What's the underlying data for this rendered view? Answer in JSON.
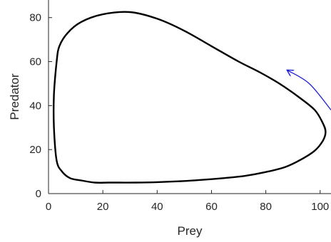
{
  "chart_data": {
    "type": "line",
    "xlabel": "Prey",
    "ylabel": "Predator",
    "xlim": [
      0,
      104
    ],
    "ylim": [
      0,
      88
    ],
    "xticks": [
      0,
      20,
      40,
      60,
      80,
      100
    ],
    "yticks": [
      0,
      20,
      40,
      60,
      80
    ],
    "grid": false,
    "series": [
      {
        "line_color": "#000000",
        "x": [
          3,
          2,
          2,
          3,
          5,
          8,
          12,
          17,
          22,
          26,
          32,
          40,
          48,
          56,
          64,
          72,
          80,
          87,
          93,
          98,
          101,
          102,
          101,
          98,
          92,
          85,
          78,
          70,
          60,
          50,
          40,
          30,
          20,
          12,
          7,
          4,
          3
        ],
        "y": [
          60,
          45,
          30,
          15,
          10,
          7,
          6,
          5,
          5,
          5,
          5,
          5.2,
          5.6,
          6.2,
          7,
          8,
          9.8,
          12,
          15.5,
          19.5,
          24,
          28,
          32,
          38,
          44,
          50,
          55,
          60,
          67,
          74,
          79.5,
          82.5,
          81.5,
          78,
          73,
          67,
          60
        ]
      }
    ],
    "annotations": [
      {
        "kind": "arrow",
        "color": "#1f1fcf",
        "x": [
          104,
          96,
          88
        ],
        "y": [
          38,
          50,
          56
        ]
      }
    ]
  }
}
